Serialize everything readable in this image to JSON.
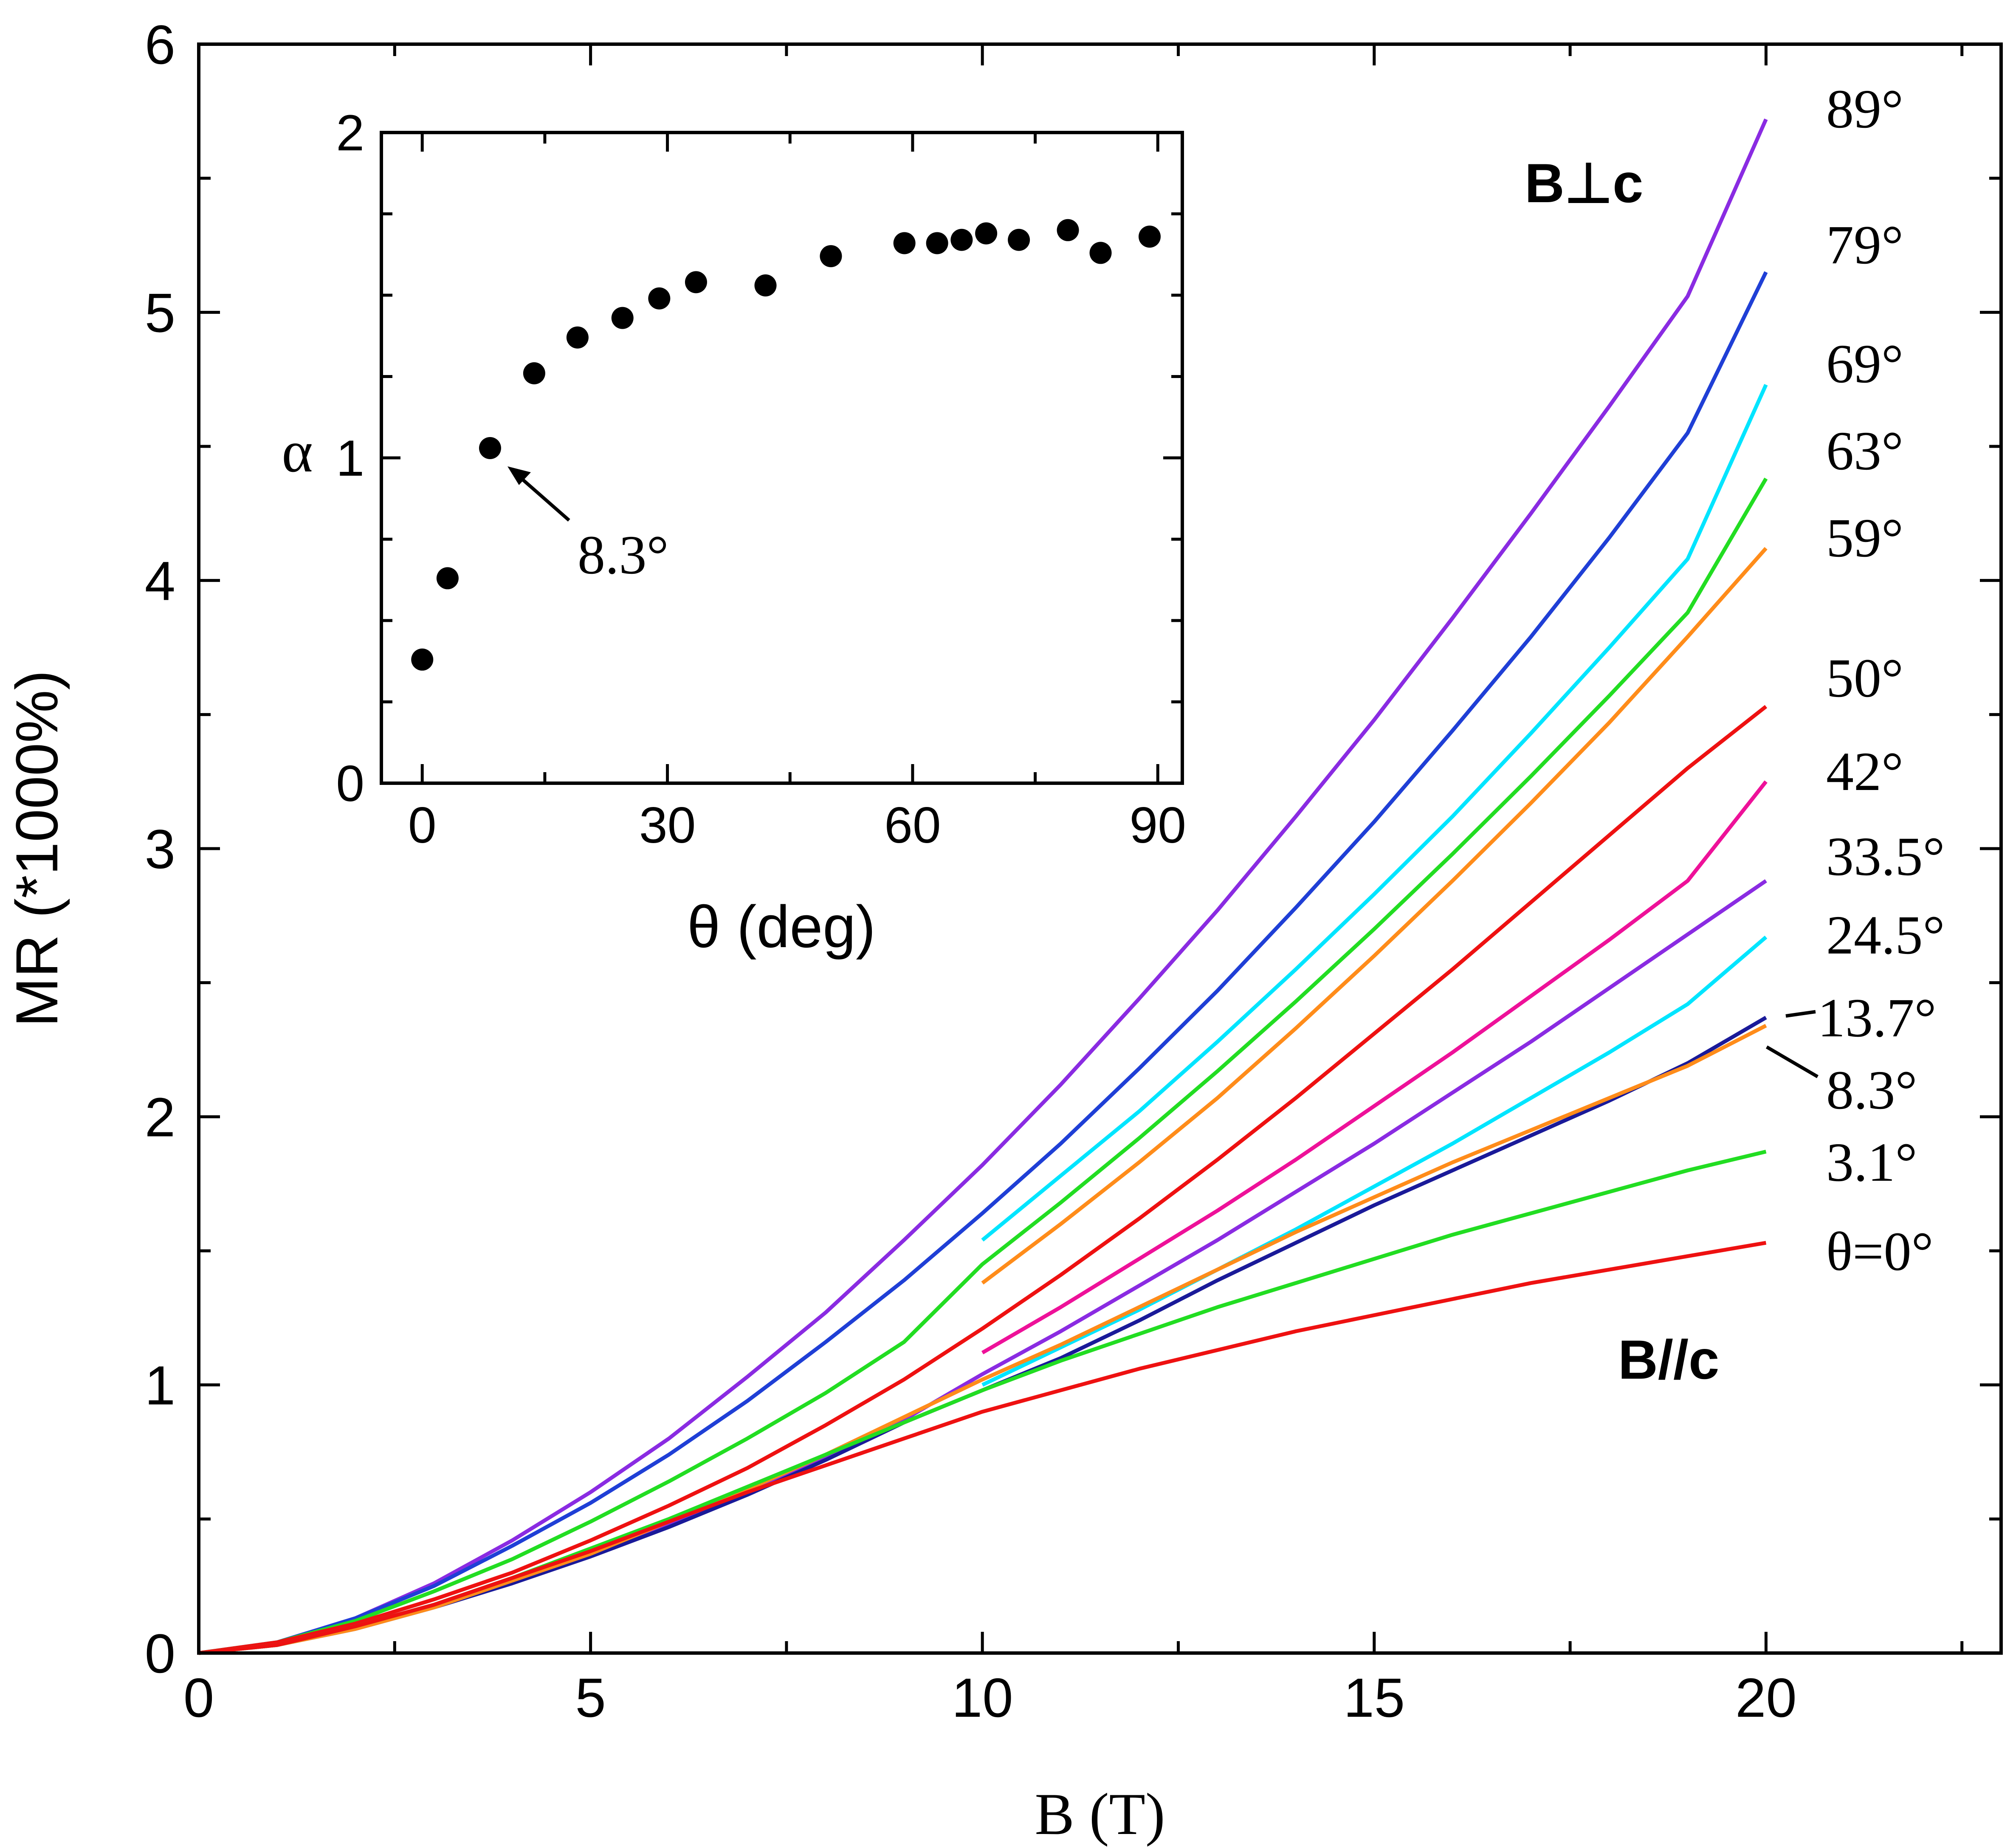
{
  "chart_data": [
    {
      "type": "line",
      "xlabel": "B (T)",
      "ylabel": "MR (*1000%)",
      "xlim": [
        0,
        23
      ],
      "ylim": [
        0,
        6
      ],
      "x_ticks": [
        0,
        5,
        10,
        15,
        20
      ],
      "y_ticks": [
        0,
        1,
        2,
        3,
        4,
        5,
        6
      ],
      "grid": false,
      "annotations": [
        "B⊥c",
        "B//c"
      ],
      "series": [
        {
          "name": "89°",
          "color": "#8a2be2",
          "x": [
            0,
            1,
            2,
            3,
            4,
            5,
            6,
            7,
            8,
            9,
            10,
            11,
            12,
            13,
            14,
            15,
            16,
            17,
            18,
            19,
            20
          ],
          "y": [
            0,
            0.04,
            0.13,
            0.26,
            0.42,
            0.6,
            0.8,
            1.03,
            1.27,
            1.54,
            1.82,
            2.12,
            2.44,
            2.77,
            3.12,
            3.48,
            3.86,
            4.25,
            4.65,
            5.06,
            5.72
          ]
        },
        {
          "name": "79°",
          "color": "#1f3fd6",
          "x": [
            0,
            1,
            2,
            3,
            4,
            5,
            6,
            7,
            8,
            9,
            10,
            11,
            12,
            13,
            14,
            15,
            16,
            17,
            18,
            19,
            20
          ],
          "y": [
            0,
            0.04,
            0.13,
            0.25,
            0.4,
            0.56,
            0.74,
            0.94,
            1.16,
            1.39,
            1.64,
            1.9,
            2.18,
            2.47,
            2.78,
            3.1,
            3.44,
            3.79,
            4.16,
            4.55,
            5.15
          ]
        },
        {
          "name": "69°",
          "color": "#00e5ff",
          "x": [
            10,
            11,
            12,
            13,
            14,
            15,
            16,
            17,
            18,
            19,
            20
          ],
          "y": [
            1.54,
            1.78,
            2.02,
            2.28,
            2.55,
            2.83,
            3.12,
            3.43,
            3.75,
            4.08,
            4.73
          ]
        },
        {
          "name": "63°",
          "color": "#22dd22",
          "x": [
            0,
            1,
            2,
            3,
            4,
            5,
            6,
            7,
            8,
            9,
            10,
            11,
            12,
            13,
            14,
            15,
            16,
            17,
            18,
            19,
            20
          ],
          "y": [
            0,
            0.04,
            0.12,
            0.23,
            0.35,
            0.49,
            0.64,
            0.8,
            0.97,
            1.16,
            1.45,
            1.68,
            1.92,
            2.17,
            2.43,
            2.7,
            2.98,
            3.27,
            3.57,
            3.88,
            4.38
          ]
        },
        {
          "name": "59°",
          "color": "#ff8c1a",
          "x": [
            10,
            11,
            12,
            13,
            14,
            15,
            16,
            17,
            18,
            19,
            20
          ],
          "y": [
            1.38,
            1.6,
            1.83,
            2.07,
            2.33,
            2.6,
            2.88,
            3.17,
            3.47,
            3.79,
            4.12
          ]
        },
        {
          "name": "50°",
          "color": "#ee1111",
          "x": [
            0,
            1,
            2,
            3,
            4,
            5,
            6,
            7,
            8,
            9,
            10,
            11,
            12,
            13,
            14,
            15,
            16,
            17,
            18,
            19,
            20
          ],
          "y": [
            0,
            0.04,
            0.11,
            0.2,
            0.3,
            0.42,
            0.55,
            0.69,
            0.85,
            1.02,
            1.21,
            1.41,
            1.62,
            1.84,
            2.07,
            2.31,
            2.55,
            2.8,
            3.05,
            3.3,
            3.53
          ]
        },
        {
          "name": "42°",
          "color": "#ee1199",
          "x": [
            10,
            11,
            12,
            13,
            14,
            15,
            16,
            17,
            18,
            19,
            20
          ],
          "y": [
            1.12,
            1.29,
            1.47,
            1.65,
            1.84,
            2.04,
            2.24,
            2.45,
            2.66,
            2.88,
            3.25
          ]
        },
        {
          "name": "33.5°",
          "color": "#8a2be2",
          "x": [
            0,
            1,
            2,
            3,
            4,
            5,
            6,
            7,
            8,
            9,
            10,
            11,
            12,
            13,
            14,
            15,
            16,
            17,
            18,
            19,
            20
          ],
          "y": [
            0,
            0.03,
            0.1,
            0.18,
            0.27,
            0.37,
            0.48,
            0.6,
            0.73,
            0.87,
            1.04,
            1.2,
            1.37,
            1.54,
            1.72,
            1.9,
            2.09,
            2.28,
            2.48,
            2.68,
            2.88
          ]
        },
        {
          "name": "24.5°",
          "color": "#00e5ff",
          "x": [
            10,
            11,
            12,
            13,
            14,
            15,
            16,
            17,
            18,
            19,
            20
          ],
          "y": [
            1.0,
            1.14,
            1.28,
            1.43,
            1.58,
            1.74,
            1.9,
            2.07,
            2.24,
            2.42,
            2.67
          ]
        },
        {
          "name": "13.7°",
          "color": "#1a1a99",
          "x": [
            0,
            1,
            2,
            3,
            4,
            5,
            6,
            7,
            8,
            9,
            10,
            11,
            12,
            13,
            14,
            15,
            16,
            17,
            18,
            19,
            20
          ],
          "y": [
            0,
            0.03,
            0.09,
            0.17,
            0.26,
            0.36,
            0.47,
            0.59,
            0.72,
            0.86,
            0.98,
            1.1,
            1.24,
            1.39,
            1.53,
            1.67,
            1.8,
            1.93,
            2.06,
            2.2,
            2.37
          ]
        },
        {
          "name": "8.3°",
          "color": "#ff8c1a",
          "x": [
            0,
            1,
            2,
            3,
            4,
            5,
            6,
            7,
            8,
            9,
            10,
            11,
            12,
            13,
            14,
            15,
            16,
            17,
            18,
            19,
            20
          ],
          "y": [
            0,
            0.03,
            0.09,
            0.17,
            0.27,
            0.37,
            0.49,
            0.61,
            0.74,
            0.88,
            1.02,
            1.15,
            1.29,
            1.43,
            1.57,
            1.7,
            1.83,
            1.95,
            2.07,
            2.19,
            2.34
          ]
        },
        {
          "name": "3.1°",
          "color": "#22dd22",
          "x": [
            0,
            1,
            2,
            3,
            4,
            5,
            6,
            7,
            8,
            9,
            10,
            11,
            12,
            13,
            14,
            15,
            16,
            17,
            18,
            19,
            20
          ],
          "y": [
            0,
            0.03,
            0.1,
            0.18,
            0.28,
            0.39,
            0.5,
            0.62,
            0.74,
            0.86,
            0.98,
            1.09,
            1.19,
            1.29,
            1.38,
            1.47,
            1.56,
            1.64,
            1.72,
            1.8,
            1.87
          ]
        },
        {
          "name": "θ=0°",
          "color": "#ee1111",
          "x": [
            0,
            1,
            2,
            3,
            4,
            5,
            6,
            7,
            8,
            9,
            10,
            11,
            12,
            13,
            14,
            15,
            16,
            17,
            18,
            19,
            20
          ],
          "y": [
            0,
            0.03,
            0.1,
            0.18,
            0.28,
            0.38,
            0.49,
            0.6,
            0.7,
            0.8,
            0.9,
            0.98,
            1.06,
            1.13,
            1.2,
            1.26,
            1.32,
            1.38,
            1.43,
            1.48,
            1.53
          ]
        }
      ]
    },
    {
      "type": "scatter",
      "xlabel": "θ (deg)",
      "ylabel": "α",
      "xlim": [
        -5,
        93
      ],
      "ylim": [
        0,
        2
      ],
      "x_ticks": [
        0,
        30,
        60,
        90
      ],
      "y_ticks": [
        0,
        1,
        2
      ],
      "annotation": "8.3°",
      "point_color": "#000000",
      "x": [
        0,
        3.1,
        8.3,
        13.7,
        19,
        24.5,
        29,
        33.5,
        42,
        50,
        59,
        63,
        66,
        69,
        73,
        79,
        83,
        89
      ],
      "y": [
        0.38,
        0.63,
        1.03,
        1.26,
        1.37,
        1.43,
        1.49,
        1.54,
        1.53,
        1.62,
        1.66,
        1.66,
        1.67,
        1.69,
        1.67,
        1.7,
        1.63,
        1.68
      ]
    }
  ],
  "main_series_labels": [
    "89°",
    "79°",
    "69°",
    "63°",
    "59°",
    "50°",
    "42°",
    "33.5°",
    "24.5°",
    "13.7°",
    "8.3°",
    "3.1°",
    "θ=0°"
  ]
}
